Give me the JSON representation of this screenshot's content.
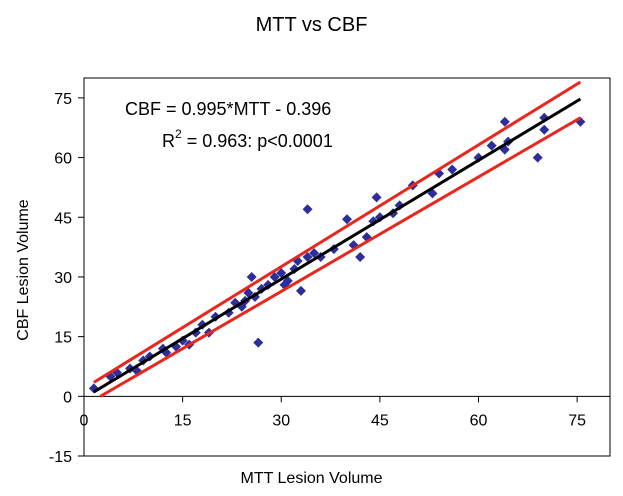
{
  "chart_data": {
    "type": "scatter",
    "title": "MTT vs CBF",
    "xlabel": "MTT Lesion Volume",
    "ylabel": "CBF Lesion Volume",
    "xlim": [
      0,
      80
    ],
    "ylim": [
      -15,
      80
    ],
    "x_ticks": [
      0,
      15,
      30,
      45,
      60,
      75
    ],
    "y_ticks": [
      -15,
      0,
      15,
      30,
      45,
      60,
      75
    ],
    "grid": false,
    "legend": "none",
    "annotations": {
      "equation": "CBF = 0.995*MTT - 0.396",
      "r_squared": "R",
      "r_squared_exp": "2",
      "r_squared_rest": " = 0.963: p<0.0001"
    },
    "series": [
      {
        "marker_color": "#2e2e9a",
        "points": [
          [
            1.5,
            2
          ],
          [
            4,
            5
          ],
          [
            5,
            6
          ],
          [
            7,
            7
          ],
          [
            8,
            6.5
          ],
          [
            9,
            9
          ],
          [
            10,
            10
          ],
          [
            12,
            12
          ],
          [
            12.5,
            11
          ],
          [
            14,
            12.5
          ],
          [
            15,
            14
          ],
          [
            16,
            13
          ],
          [
            17,
            16
          ],
          [
            18,
            18
          ],
          [
            19,
            16
          ],
          [
            20,
            20
          ],
          [
            22,
            21
          ],
          [
            23,
            23.5
          ],
          [
            24,
            22.5
          ],
          [
            24.5,
            24
          ],
          [
            25,
            26
          ],
          [
            25.5,
            30
          ],
          [
            26,
            25
          ],
          [
            26.5,
            13.5
          ],
          [
            27,
            27
          ],
          [
            28,
            28
          ],
          [
            29,
            30
          ],
          [
            30,
            31
          ],
          [
            30.5,
            28
          ],
          [
            31,
            29
          ],
          [
            32,
            32
          ],
          [
            32.5,
            34
          ],
          [
            33,
            26.5
          ],
          [
            34,
            35
          ],
          [
            34,
            47
          ],
          [
            35,
            36
          ],
          [
            36,
            35
          ],
          [
            38,
            37
          ],
          [
            40,
            44.5
          ],
          [
            41,
            38
          ],
          [
            42,
            35
          ],
          [
            43,
            40
          ],
          [
            44,
            44
          ],
          [
            44.5,
            50
          ],
          [
            45,
            45
          ],
          [
            47,
            46
          ],
          [
            48,
            48
          ],
          [
            50,
            53
          ],
          [
            53,
            51
          ],
          [
            54,
            56
          ],
          [
            56,
            57
          ],
          [
            60,
            60
          ],
          [
            62,
            63
          ],
          [
            64,
            62
          ],
          [
            64,
            69
          ],
          [
            64.5,
            64
          ],
          [
            69,
            60
          ],
          [
            70,
            67
          ],
          [
            70,
            70
          ],
          [
            75.5,
            69
          ]
        ]
      }
    ],
    "regression": {
      "slope": 0.995,
      "intercept": -0.396,
      "x_range": [
        1.5,
        75.5
      ],
      "color": "#000000"
    },
    "confidence_bands": {
      "color": "#e8281e",
      "upper": [
        [
          1.5,
          3.5
        ],
        [
          75.5,
          79
        ]
      ],
      "lower": [
        [
          2.5,
          0
        ],
        [
          75.5,
          70
        ]
      ]
    }
  }
}
